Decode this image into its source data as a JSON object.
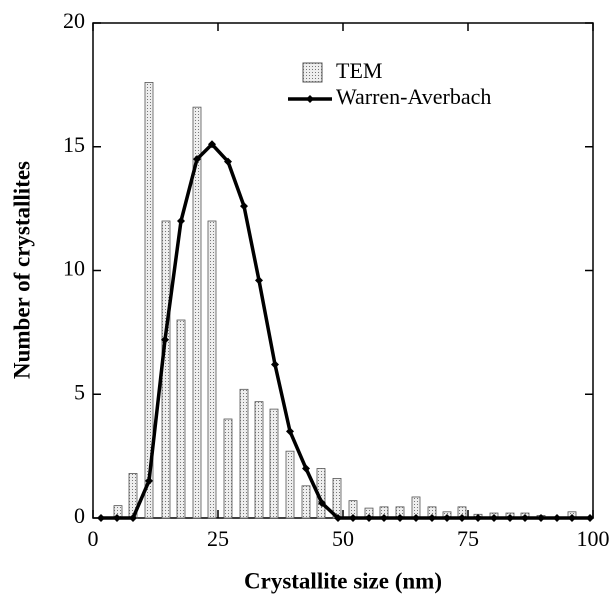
{
  "chart_data": {
    "type": "combo",
    "xlabel": "Crystallite size (nm)",
    "ylabel": "Number of crystallites",
    "xlim": [
      0,
      100
    ],
    "ylim": [
      0,
      20
    ],
    "xticks": [
      0,
      25,
      50,
      75,
      100
    ],
    "yticks": [
      0,
      5,
      10,
      15,
      20
    ],
    "legend": "top",
    "series": [
      {
        "name": "TEM",
        "type": "bar",
        "color": "#d4d4d4",
        "x": [
          5,
          8,
          11.2,
          14.6,
          17.6,
          20.8,
          23.8,
          27,
          30.2,
          33.2,
          36.2,
          39.4,
          42.6,
          45.6,
          48.8,
          52,
          55.2,
          58.2,
          61.4,
          64.6,
          67.8,
          70.8,
          73.8,
          77,
          80.2,
          83.4,
          86.4,
          89.6,
          95.8
        ],
        "values": [
          0.5,
          1.8,
          17.6,
          12,
          8,
          16.6,
          12,
          4,
          5.2,
          4.7,
          4.4,
          2.7,
          1.3,
          2,
          1.6,
          0.7,
          0.4,
          0.45,
          0.45,
          0.85,
          0.45,
          0.25,
          0.45,
          0.15,
          0.2,
          0.2,
          0.2,
          0.1,
          0.25
        ]
      },
      {
        "name": "Warren-Averbach",
        "type": "line",
        "color": "#000000",
        "x": [
          1.6,
          4.8,
          8,
          11.2,
          14.4,
          17.6,
          20.8,
          23.8,
          27,
          30.2,
          33.2,
          36.4,
          39.4,
          42.6,
          45.8,
          49,
          52,
          55.2,
          58.2,
          61.4,
          64.6,
          67.8,
          70.8,
          73.8,
          77,
          80.2,
          83.4,
          86.4,
          89.6,
          92.8,
          95.8,
          99.4
        ],
        "values": [
          0,
          0,
          0,
          1.5,
          7.2,
          12,
          14.5,
          15.1,
          14.4,
          12.6,
          9.6,
          6.2,
          3.5,
          2,
          0.6,
          0,
          0,
          0,
          0,
          0,
          0,
          0,
          0,
          0,
          0,
          0,
          0,
          0,
          0,
          0,
          0,
          0
        ]
      }
    ]
  }
}
